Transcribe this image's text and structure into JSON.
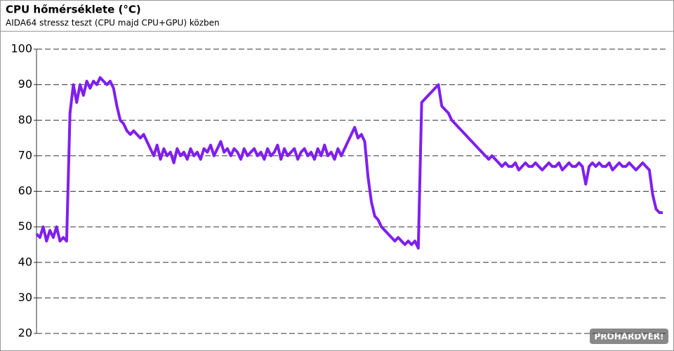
{
  "chart_data": {
    "type": "line",
    "title": "CPU hőmérséklete (°C)",
    "subtitle": "AIDA64 stressz teszt (CPU majd CPU+GPU) közben",
    "watermark": "PROHARDVER!",
    "color": "#7f1fef",
    "ylim": [
      20,
      100
    ],
    "yticks": [
      20,
      30,
      40,
      50,
      60,
      70,
      80,
      90,
      100
    ],
    "grid": true,
    "values": [
      48,
      47,
      50,
      46,
      49,
      47,
      50,
      46,
      47,
      46,
      82,
      90,
      85,
      90,
      87,
      91,
      89,
      91,
      90,
      92,
      91,
      90,
      91,
      89,
      84,
      80,
      79,
      77,
      76,
      77,
      76,
      75,
      76,
      74,
      72,
      70,
      73,
      69,
      72,
      70,
      71,
      68,
      72,
      70,
      71,
      69,
      72,
      70,
      71,
      69,
      72,
      71,
      73,
      70,
      72,
      74,
      71,
      72,
      70,
      72,
      71,
      69,
      72,
      70,
      71,
      72,
      70,
      71,
      69,
      72,
      70,
      71,
      73,
      69,
      72,
      70,
      71,
      72,
      69,
      71,
      72,
      70,
      71,
      69,
      72,
      70,
      73,
      70,
      71,
      69,
      72,
      70,
      72,
      74,
      76,
      78,
      75,
      76,
      74,
      64,
      57,
      53,
      52,
      50,
      49,
      48,
      47,
      46,
      47,
      46,
      45,
      46,
      45,
      46,
      44,
      85,
      86,
      87,
      88,
      89,
      90,
      84,
      83,
      82,
      80,
      79,
      78,
      77,
      76,
      75,
      74,
      73,
      72,
      71,
      70,
      69,
      70,
      69,
      68,
      67,
      68,
      67,
      67,
      68,
      66,
      67,
      68,
      67,
      67,
      68,
      67,
      66,
      67,
      68,
      67,
      67,
      68,
      66,
      67,
      68,
      67,
      67,
      68,
      67,
      62,
      67,
      68,
      67,
      68,
      67,
      67,
      68,
      66,
      67,
      68,
      67,
      67,
      68,
      67,
      66,
      67,
      68,
      67,
      66,
      59,
      55,
      54,
      54
    ]
  }
}
